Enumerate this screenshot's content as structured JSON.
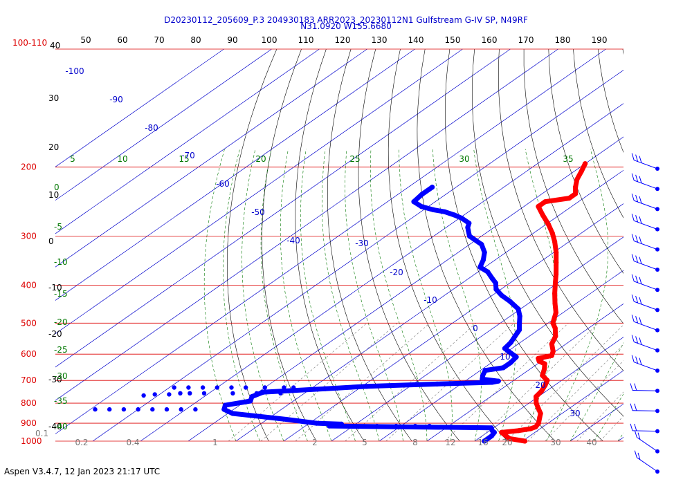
{
  "header": {
    "title_line1": "D20230112_205609_P.3 204930183 ARR2023_20230112N1 Gulfstream G-IV SP, N49RF",
    "title_line2": "N31.0920 W155.6680"
  },
  "footer": {
    "text": "Aspen V3.4.7, 12 Jan 2023  21:17 UTC"
  },
  "colors": {
    "isobar": "#dd0000",
    "isotherm": "#0000cc",
    "dry_adiabat": "#000000",
    "moist_adiabat": "#007700",
    "mixing_ratio": "#777777",
    "temperature": "#ff0000",
    "dewpoint": "#0000ff"
  },
  "chart_data": {
    "type": "skew-t log-p",
    "y_axis": {
      "unit": "hPa",
      "scale": "log",
      "range": [
        1000,
        100
      ],
      "labels": [
        "100-110",
        "200",
        "300",
        "400",
        "500",
        "600",
        "700",
        "800",
        "900",
        "1000"
      ],
      "isobars": [
        100,
        200,
        300,
        400,
        500,
        600,
        700,
        800,
        900,
        1000
      ]
    },
    "top_axis_ticks": [
      "50",
      "60",
      "70",
      "80",
      "90",
      "100",
      "110",
      "120",
      "130",
      "140",
      "150",
      "160",
      "170",
      "180",
      "190"
    ],
    "left_black_labels": [
      "40",
      "30",
      "20",
      "10",
      "0",
      "-10",
      "-20",
      "-30",
      "-40"
    ],
    "left_green_labels": [
      "0",
      "-5",
      "-10",
      "-15",
      "-20",
      "-25",
      "-30",
      "-35",
      "-40"
    ],
    "green_row_labels": [
      "5",
      "10",
      "15",
      "20",
      "25",
      "30",
      "35"
    ],
    "isotherm_labels": [
      "-100",
      "-90",
      "-80",
      "-70",
      "-60",
      "-50",
      "-40",
      "-30",
      "-20",
      "-10",
      "0",
      "10",
      "20",
      "30"
    ],
    "mixing_ratio_labels": [
      "0.1",
      "0.2",
      "0.4",
      "1",
      "2",
      "5",
      "8",
      "12",
      "16",
      "20",
      "30",
      "40"
    ],
    "temperature_profile": [
      {
        "p": 1000,
        "t": 20.5
      },
      {
        "p": 985,
        "t": 16.5
      },
      {
        "p": 960,
        "t": 14.0
      },
      {
        "p": 950,
        "t": 13.0
      },
      {
        "p": 940,
        "t": 16.0
      },
      {
        "p": 930,
        "t": 18.0
      },
      {
        "p": 920,
        "t": 18.5
      },
      {
        "p": 900,
        "t": 18.0
      },
      {
        "p": 870,
        "t": 16.5
      },
      {
        "p": 850,
        "t": 15.5
      },
      {
        "p": 825,
        "t": 13.5
      },
      {
        "p": 800,
        "t": 11.5
      },
      {
        "p": 770,
        "t": 9.5
      },
      {
        "p": 745,
        "t": 9.0
      },
      {
        "p": 720,
        "t": 8.0
      },
      {
        "p": 700,
        "t": 7.0
      },
      {
        "p": 680,
        "t": 4.5
      },
      {
        "p": 655,
        "t": 3.0
      },
      {
        "p": 635,
        "t": 1.5
      },
      {
        "p": 625,
        "t": -0.5
      },
      {
        "p": 615,
        "t": -1.5
      },
      {
        "p": 605,
        "t": 0.5
      },
      {
        "p": 590,
        "t": -0.5
      },
      {
        "p": 565,
        "t": -3.0
      },
      {
        "p": 540,
        "t": -4.5
      },
      {
        "p": 515,
        "t": -7.0
      },
      {
        "p": 500,
        "t": -9.0
      },
      {
        "p": 470,
        "t": -11.5
      },
      {
        "p": 445,
        "t": -14.5
      },
      {
        "p": 420,
        "t": -17.5
      },
      {
        "p": 395,
        "t": -20.5
      },
      {
        "p": 375,
        "t": -23.0
      },
      {
        "p": 350,
        "t": -26.5
      },
      {
        "p": 330,
        "t": -29.5
      },
      {
        "p": 310,
        "t": -33.0
      },
      {
        "p": 295,
        "t": -36.0
      },
      {
        "p": 280,
        "t": -39.5
      },
      {
        "p": 265,
        "t": -43.5
      },
      {
        "p": 252,
        "t": -47.0
      },
      {
        "p": 245,
        "t": -47.0
      },
      {
        "p": 240,
        "t": -43.0
      },
      {
        "p": 234,
        "t": -43.0
      },
      {
        "p": 225,
        "t": -45.0
      },
      {
        "p": 215,
        "t": -47.0
      },
      {
        "p": 205,
        "t": -48.5
      },
      {
        "p": 196,
        "t": -50.0
      }
    ],
    "dewpoint_profile": [
      {
        "p": 1000,
        "td": 12.0
      },
      {
        "p": 970,
        "td": 12.0
      },
      {
        "p": 950,
        "td": 11.5
      },
      {
        "p": 940,
        "td": 10.5
      },
      {
        "p": 925,
        "td": 9.5
      },
      {
        "p": 915,
        "td": -25.0
      },
      {
        "p": 905,
        "td": -23.0
      },
      {
        "p": 900,
        "td": -28.5
      },
      {
        "p": 880,
        "td": -36.0
      },
      {
        "p": 850,
        "td": -49.0
      },
      {
        "p": 830,
        "td": -52.0
      },
      {
        "p": 810,
        "td": -53.0
      },
      {
        "p": 790,
        "td": -49.0
      },
      {
        "p": 770,
        "td": -50.0
      },
      {
        "p": 750,
        "td": -49.0
      },
      {
        "p": 735,
        "td": -37.0
      },
      {
        "p": 725,
        "td": -29.0
      },
      {
        "p": 715,
        "td": -15.0
      },
      {
        "p": 708,
        "td": -4.0
      },
      {
        "p": 703,
        "td": -3.0
      },
      {
        "p": 695,
        "td": -7.0
      },
      {
        "p": 680,
        "td": -8.0
      },
      {
        "p": 660,
        "td": -9.0
      },
      {
        "p": 650,
        "td": -6.0
      },
      {
        "p": 630,
        "td": -6.0
      },
      {
        "p": 610,
        "td": -6.5
      },
      {
        "p": 595,
        "td": -9.0
      },
      {
        "p": 580,
        "td": -11.5
      },
      {
        "p": 560,
        "td": -12.0
      },
      {
        "p": 540,
        "td": -13.0
      },
      {
        "p": 520,
        "td": -14.0
      },
      {
        "p": 500,
        "td": -16.0
      },
      {
        "p": 480,
        "td": -18.0
      },
      {
        "p": 460,
        "td": -20.5
      },
      {
        "p": 440,
        "td": -24.5
      },
      {
        "p": 425,
        "td": -28.0
      },
      {
        "p": 410,
        "td": -31.0
      },
      {
        "p": 395,
        "td": -33.0
      },
      {
        "p": 385,
        "td": -35.0
      },
      {
        "p": 370,
        "td": -38.0
      },
      {
        "p": 360,
        "td": -41.0
      },
      {
        "p": 345,
        "td": -42.5
      },
      {
        "p": 330,
        "td": -44.5
      },
      {
        "p": 315,
        "td": -47.5
      },
      {
        "p": 300,
        "td": -52.5
      },
      {
        "p": 290,
        "td": -54.5
      },
      {
        "p": 285,
        "td": -55.5
      },
      {
        "p": 278,
        "td": -56.5
      },
      {
        "p": 270,
        "td": -59.5
      },
      {
        "p": 265,
        "td": -62.0
      },
      {
        "p": 260,
        "td": -65.0
      },
      {
        "p": 257,
        "td": -68.0
      },
      {
        "p": 252,
        "td": -71.5
      },
      {
        "p": 245,
        "td": -74.5
      },
      {
        "p": 235,
        "td": -75.0
      },
      {
        "p": 225,
        "td": -75.0
      }
    ],
    "scattered_dewpoint_points": [
      {
        "p": 915,
        "td": -20.0
      },
      {
        "p": 915,
        "td": -15.0
      },
      {
        "p": 915,
        "td": -11.0
      },
      {
        "p": 915,
        "td": -7.0
      },
      {
        "p": 915,
        "td": -4.0
      },
      {
        "p": 730,
        "td": -44.0
      },
      {
        "p": 730,
        "td": -46.0
      },
      {
        "p": 730,
        "td": -50.0
      },
      {
        "p": 730,
        "td": -54.0
      },
      {
        "p": 730,
        "td": -57.0
      },
      {
        "p": 730,
        "td": -60.0
      },
      {
        "p": 730,
        "td": -63.0
      },
      {
        "p": 730,
        "td": -66.0
      },
      {
        "p": 730,
        "td": -69.0
      },
      {
        "p": 755,
        "td": -45.0
      },
      {
        "p": 755,
        "td": -50.0
      },
      {
        "p": 755,
        "td": -55.0
      },
      {
        "p": 755,
        "td": -61.0
      },
      {
        "p": 755,
        "td": -64.0
      },
      {
        "p": 755,
        "td": -66.0
      },
      {
        "p": 760,
        "td": -68.0
      },
      {
        "p": 760,
        "td": -71.0
      },
      {
        "p": 765,
        "td": -73.0
      },
      {
        "p": 830,
        "td": -58.0
      },
      {
        "p": 830,
        "td": -61.0
      },
      {
        "p": 830,
        "td": -64.0
      },
      {
        "p": 830,
        "td": -67.0
      },
      {
        "p": 830,
        "td": -70.0
      },
      {
        "p": 830,
        "td": -73.0
      },
      {
        "p": 830,
        "td": -76.0
      },
      {
        "p": 830,
        "td": -79.0
      }
    ],
    "wind_barb_levels": [
      200,
      230,
      255,
      280,
      310,
      340,
      380,
      420,
      470,
      530,
      610,
      720,
      800,
      900,
      960,
      1000
    ]
  }
}
